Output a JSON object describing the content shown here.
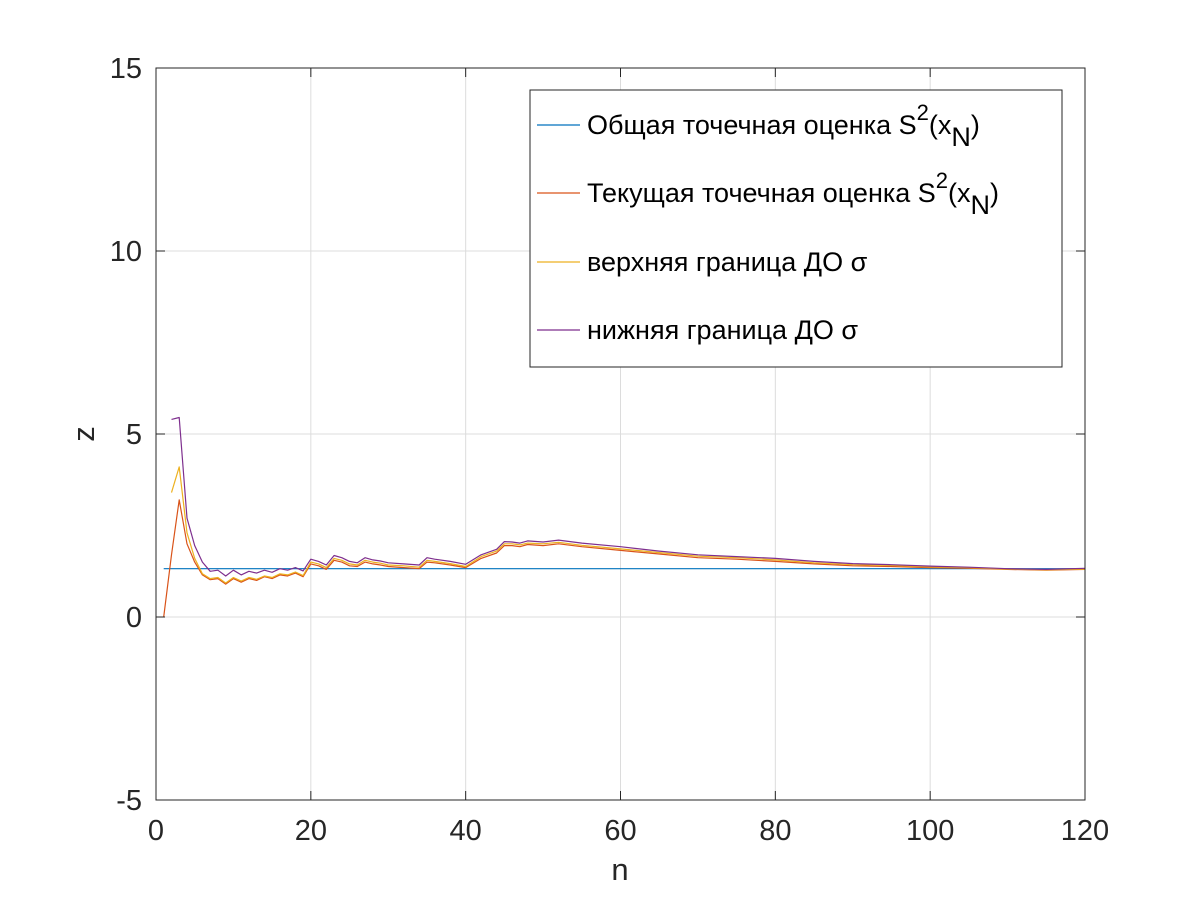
{
  "chart_data": {
    "type": "line",
    "xlabel": "n",
    "ylabel": "z",
    "xlim": [
      0,
      120
    ],
    "ylim": [
      -5,
      15
    ],
    "xticks": [
      "0",
      "20",
      "40",
      "60",
      "80",
      "100",
      "120"
    ],
    "yticks": [
      "-5",
      "0",
      "5",
      "10",
      "15"
    ],
    "grid": true,
    "legend_position": "top-right",
    "series": [
      {
        "name": "Общая точечная оценка S²(x_N)",
        "legend_main": "Общая точечная оценка S",
        "legend_tail": "(x",
        "legend_sub": "N",
        "legend_close": ")",
        "color": "#0072BD",
        "x": [
          1,
          120
        ],
        "y": [
          1.32,
          1.32
        ]
      },
      {
        "name": "Текущая точечная оценка S²(x_N)",
        "legend_main": "Текущая точечная оценка S",
        "legend_tail": "(x",
        "legend_sub": "N",
        "legend_close": ")",
        "color": "#D95319",
        "x": [
          1,
          2,
          3,
          4,
          5,
          6,
          7,
          8,
          9,
          10,
          11,
          12,
          13,
          14,
          15,
          16,
          17,
          18,
          19,
          20,
          21,
          22,
          23,
          24,
          25,
          26,
          27,
          28,
          29,
          30,
          32,
          34,
          35,
          36,
          38,
          40,
          42,
          44,
          45,
          46,
          47,
          48,
          50,
          52,
          55,
          60,
          65,
          70,
          75,
          80,
          85,
          90,
          95,
          100,
          105,
          110,
          115,
          120
        ],
        "y": [
          0.0,
          1.7,
          3.2,
          2.0,
          1.5,
          1.15,
          1.02,
          1.05,
          0.9,
          1.05,
          0.95,
          1.05,
          1.0,
          1.1,
          1.05,
          1.15,
          1.12,
          1.2,
          1.1,
          1.45,
          1.4,
          1.3,
          1.55,
          1.5,
          1.4,
          1.38,
          1.5,
          1.45,
          1.42,
          1.38,
          1.35,
          1.32,
          1.5,
          1.48,
          1.42,
          1.35,
          1.6,
          1.75,
          1.95,
          1.95,
          1.92,
          1.98,
          1.95,
          2.0,
          1.92,
          1.82,
          1.72,
          1.62,
          1.58,
          1.52,
          1.45,
          1.4,
          1.38,
          1.35,
          1.33,
          1.3,
          1.28,
          1.3
        ]
      },
      {
        "name": "верхняя граница ДО σ",
        "legend_main": "верхняя граница ДО σ",
        "color": "#EDB120",
        "x": [
          2,
          3,
          4,
          5,
          6,
          7,
          8,
          9,
          10,
          11,
          12,
          13,
          14,
          15,
          16,
          17,
          18,
          19,
          20,
          21,
          22,
          23,
          24,
          25,
          26,
          27,
          28,
          29,
          30,
          32,
          34,
          35,
          36,
          38,
          40,
          42,
          44,
          45,
          46,
          47,
          48,
          50,
          52,
          55,
          60,
          65,
          70,
          75,
          80,
          85,
          90,
          95,
          100,
          105,
          110,
          115,
          120
        ],
        "y": [
          3.4,
          4.1,
          2.3,
          1.6,
          1.18,
          1.05,
          1.08,
          0.93,
          1.08,
          0.98,
          1.08,
          1.03,
          1.12,
          1.08,
          1.18,
          1.15,
          1.23,
          1.13,
          1.5,
          1.45,
          1.35,
          1.6,
          1.55,
          1.45,
          1.42,
          1.55,
          1.5,
          1.47,
          1.42,
          1.4,
          1.36,
          1.55,
          1.52,
          1.46,
          1.38,
          1.65,
          1.8,
          2.0,
          2.0,
          1.97,
          2.02,
          2.0,
          2.04,
          1.96,
          1.86,
          1.76,
          1.66,
          1.62,
          1.56,
          1.48,
          1.43,
          1.41,
          1.37,
          1.35,
          1.31,
          1.29,
          1.31
        ]
      },
      {
        "name": "нижняя граница ДО σ",
        "legend_main": "нижняя граница ДО σ",
        "color": "#7E2F8E",
        "x": [
          2,
          3,
          4,
          5,
          6,
          7,
          8,
          9,
          10,
          11,
          12,
          13,
          14,
          15,
          16,
          17,
          18,
          19,
          20,
          21,
          22,
          23,
          24,
          25,
          26,
          27,
          28,
          29,
          30,
          32,
          34,
          35,
          36,
          38,
          40,
          42,
          44,
          45,
          46,
          47,
          48,
          50,
          52,
          55,
          60,
          65,
          70,
          75,
          80,
          85,
          90,
          95,
          100,
          105,
          110,
          115,
          120
        ],
        "y": [
          5.4,
          5.45,
          2.7,
          1.95,
          1.5,
          1.25,
          1.28,
          1.12,
          1.28,
          1.15,
          1.25,
          1.2,
          1.28,
          1.22,
          1.32,
          1.28,
          1.35,
          1.26,
          1.58,
          1.52,
          1.42,
          1.68,
          1.62,
          1.52,
          1.48,
          1.62,
          1.56,
          1.53,
          1.48,
          1.45,
          1.42,
          1.62,
          1.58,
          1.52,
          1.44,
          1.7,
          1.85,
          2.06,
          2.05,
          2.02,
          2.08,
          2.05,
          2.1,
          2.02,
          1.92,
          1.8,
          1.7,
          1.65,
          1.6,
          1.52,
          1.46,
          1.43,
          1.39,
          1.36,
          1.32,
          1.3,
          1.33
        ]
      }
    ]
  }
}
